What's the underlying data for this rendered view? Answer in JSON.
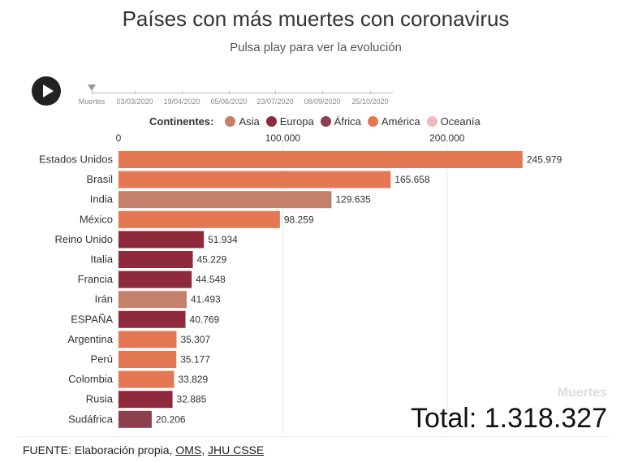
{
  "title": "Países con más muertes con coronavirus",
  "subtitle": "Pulsa play para ver la evolución",
  "timeline": {
    "labels": [
      "Muertes",
      "03/03/2020",
      "19/04/2020",
      "05/06/2020",
      "23/07/2020",
      "08/09/2020",
      "25/10/2020"
    ],
    "position": 0
  },
  "legend": {
    "title": "Continentes:",
    "items": [
      {
        "label": "Asia",
        "color": "#C4806B"
      },
      {
        "label": "Europa",
        "color": "#8F2A3C"
      },
      {
        "label": "África",
        "color": "#8C3F4D"
      },
      {
        "label": "América",
        "color": "#E47852"
      },
      {
        "label": "Oceanía",
        "color": "#F2B8BE"
      }
    ]
  },
  "chart_data": {
    "type": "bar",
    "orientation": "horizontal",
    "categories": [
      "Estados Unidos",
      "Brasil",
      "India",
      "México",
      "Reino Unido",
      "Italia",
      "Francia",
      "Irán",
      "ESPAÑA",
      "Argentina",
      "Perú",
      "Colombia",
      "Rusia",
      "Sudáfrica"
    ],
    "values": [
      245979,
      165658,
      129635,
      98259,
      51934,
      45229,
      44548,
      41493,
      40769,
      35307,
      35177,
      33829,
      32885,
      20206
    ],
    "value_labels": [
      "245.979",
      "165.658",
      "129.635",
      "98.259",
      "51.934",
      "45.229",
      "44.548",
      "41.493",
      "40.769",
      "35.307",
      "35.177",
      "33.829",
      "32.885",
      "20.206"
    ],
    "continents": [
      "América",
      "América",
      "Asia",
      "América",
      "Europa",
      "Europa",
      "Europa",
      "Asia",
      "Europa",
      "América",
      "América",
      "America",
      "Europa",
      "África"
    ],
    "xlim": [
      0,
      250000
    ],
    "xticks": [
      0,
      100000,
      200000
    ],
    "xtick_labels": [
      "0",
      "100.000",
      "200.000"
    ],
    "grid": true,
    "legend_position": "top",
    "metric_label": "Muertes",
    "total_text": "Total: 1.318.327"
  },
  "source": {
    "prefix": "FUENTE: Elaboración propia, ",
    "link1": "OMS",
    "separator": ", ",
    "link2": "JHU CSSE"
  }
}
